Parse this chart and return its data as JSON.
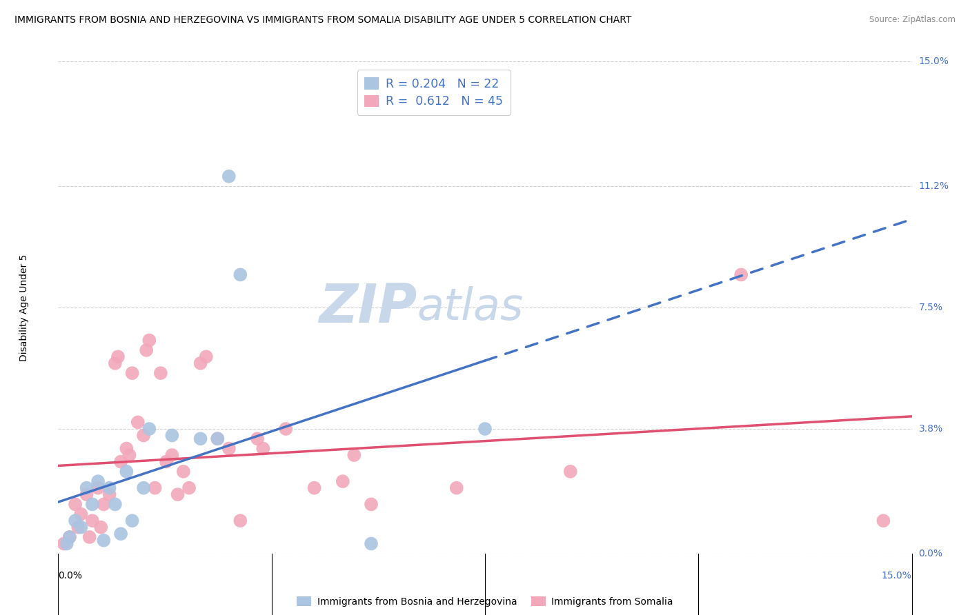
{
  "title": "IMMIGRANTS FROM BOSNIA AND HERZEGOVINA VS IMMIGRANTS FROM SOMALIA DISABILITY AGE UNDER 5 CORRELATION CHART",
  "source": "Source: ZipAtlas.com",
  "ylabel": "Disability Age Under 5",
  "ytick_vals": [
    0.0,
    3.8,
    7.5,
    11.2,
    15.0
  ],
  "ytick_labels": [
    "0.0%",
    "3.8%",
    "7.5%",
    "11.2%",
    "15.0%"
  ],
  "xlim": [
    0.0,
    15.0
  ],
  "ylim": [
    0.0,
    15.0
  ],
  "legend_bosnia_R": "0.204",
  "legend_bosnia_N": "22",
  "legend_somalia_R": "0.612",
  "legend_somalia_N": "45",
  "bosnia_color": "#aac4e2",
  "somalia_color": "#f2a8ba",
  "bosnia_line_color": "#4472c4",
  "somalia_line_color": "#e05070",
  "bosnia_scatter": [
    [
      0.15,
      0.3
    ],
    [
      0.2,
      0.5
    ],
    [
      0.3,
      1.0
    ],
    [
      0.4,
      0.8
    ],
    [
      0.5,
      2.0
    ],
    [
      0.6,
      1.5
    ],
    [
      0.7,
      2.2
    ],
    [
      0.8,
      0.4
    ],
    [
      0.9,
      2.0
    ],
    [
      1.0,
      1.5
    ],
    [
      1.1,
      0.6
    ],
    [
      1.2,
      2.5
    ],
    [
      1.3,
      1.0
    ],
    [
      1.5,
      2.0
    ],
    [
      1.6,
      3.8
    ],
    [
      2.0,
      3.6
    ],
    [
      2.5,
      3.5
    ],
    [
      2.8,
      3.5
    ],
    [
      3.0,
      11.5
    ],
    [
      3.2,
      8.5
    ],
    [
      5.5,
      0.3
    ],
    [
      7.5,
      3.8
    ]
  ],
  "somalia_scatter": [
    [
      0.1,
      0.3
    ],
    [
      0.2,
      0.5
    ],
    [
      0.3,
      1.5
    ],
    [
      0.35,
      0.8
    ],
    [
      0.4,
      1.2
    ],
    [
      0.5,
      1.8
    ],
    [
      0.55,
      0.5
    ],
    [
      0.6,
      1.0
    ],
    [
      0.7,
      2.0
    ],
    [
      0.75,
      0.8
    ],
    [
      0.8,
      1.5
    ],
    [
      0.9,
      1.8
    ],
    [
      1.0,
      5.8
    ],
    [
      1.05,
      6.0
    ],
    [
      1.1,
      2.8
    ],
    [
      1.2,
      3.2
    ],
    [
      1.25,
      3.0
    ],
    [
      1.3,
      5.5
    ],
    [
      1.4,
      4.0
    ],
    [
      1.5,
      3.6
    ],
    [
      1.55,
      6.2
    ],
    [
      1.6,
      6.5
    ],
    [
      1.7,
      2.0
    ],
    [
      1.8,
      5.5
    ],
    [
      1.9,
      2.8
    ],
    [
      2.0,
      3.0
    ],
    [
      2.1,
      1.8
    ],
    [
      2.2,
      2.5
    ],
    [
      2.3,
      2.0
    ],
    [
      2.5,
      5.8
    ],
    [
      2.6,
      6.0
    ],
    [
      2.8,
      3.5
    ],
    [
      3.0,
      3.2
    ],
    [
      3.2,
      1.0
    ],
    [
      3.5,
      3.5
    ],
    [
      3.6,
      3.2
    ],
    [
      4.0,
      3.8
    ],
    [
      4.5,
      2.0
    ],
    [
      5.0,
      2.2
    ],
    [
      5.2,
      3.0
    ],
    [
      5.5,
      1.5
    ],
    [
      7.0,
      2.0
    ],
    [
      9.0,
      2.5
    ],
    [
      12.0,
      8.5
    ],
    [
      14.5,
      1.0
    ]
  ],
  "grid_color": "#d0d0d0",
  "background_color": "#ffffff",
  "title_fontsize": 10,
  "source_fontsize": 8.5,
  "axis_label_fontsize": 10,
  "tick_fontsize": 10,
  "legend_fontsize": 12.5,
  "watermark_fontsize": 56,
  "right_tick_color": "#4472c4",
  "watermark_zip_color": "#c8d8ea",
  "watermark_atlas_color": "#c8d8ea"
}
